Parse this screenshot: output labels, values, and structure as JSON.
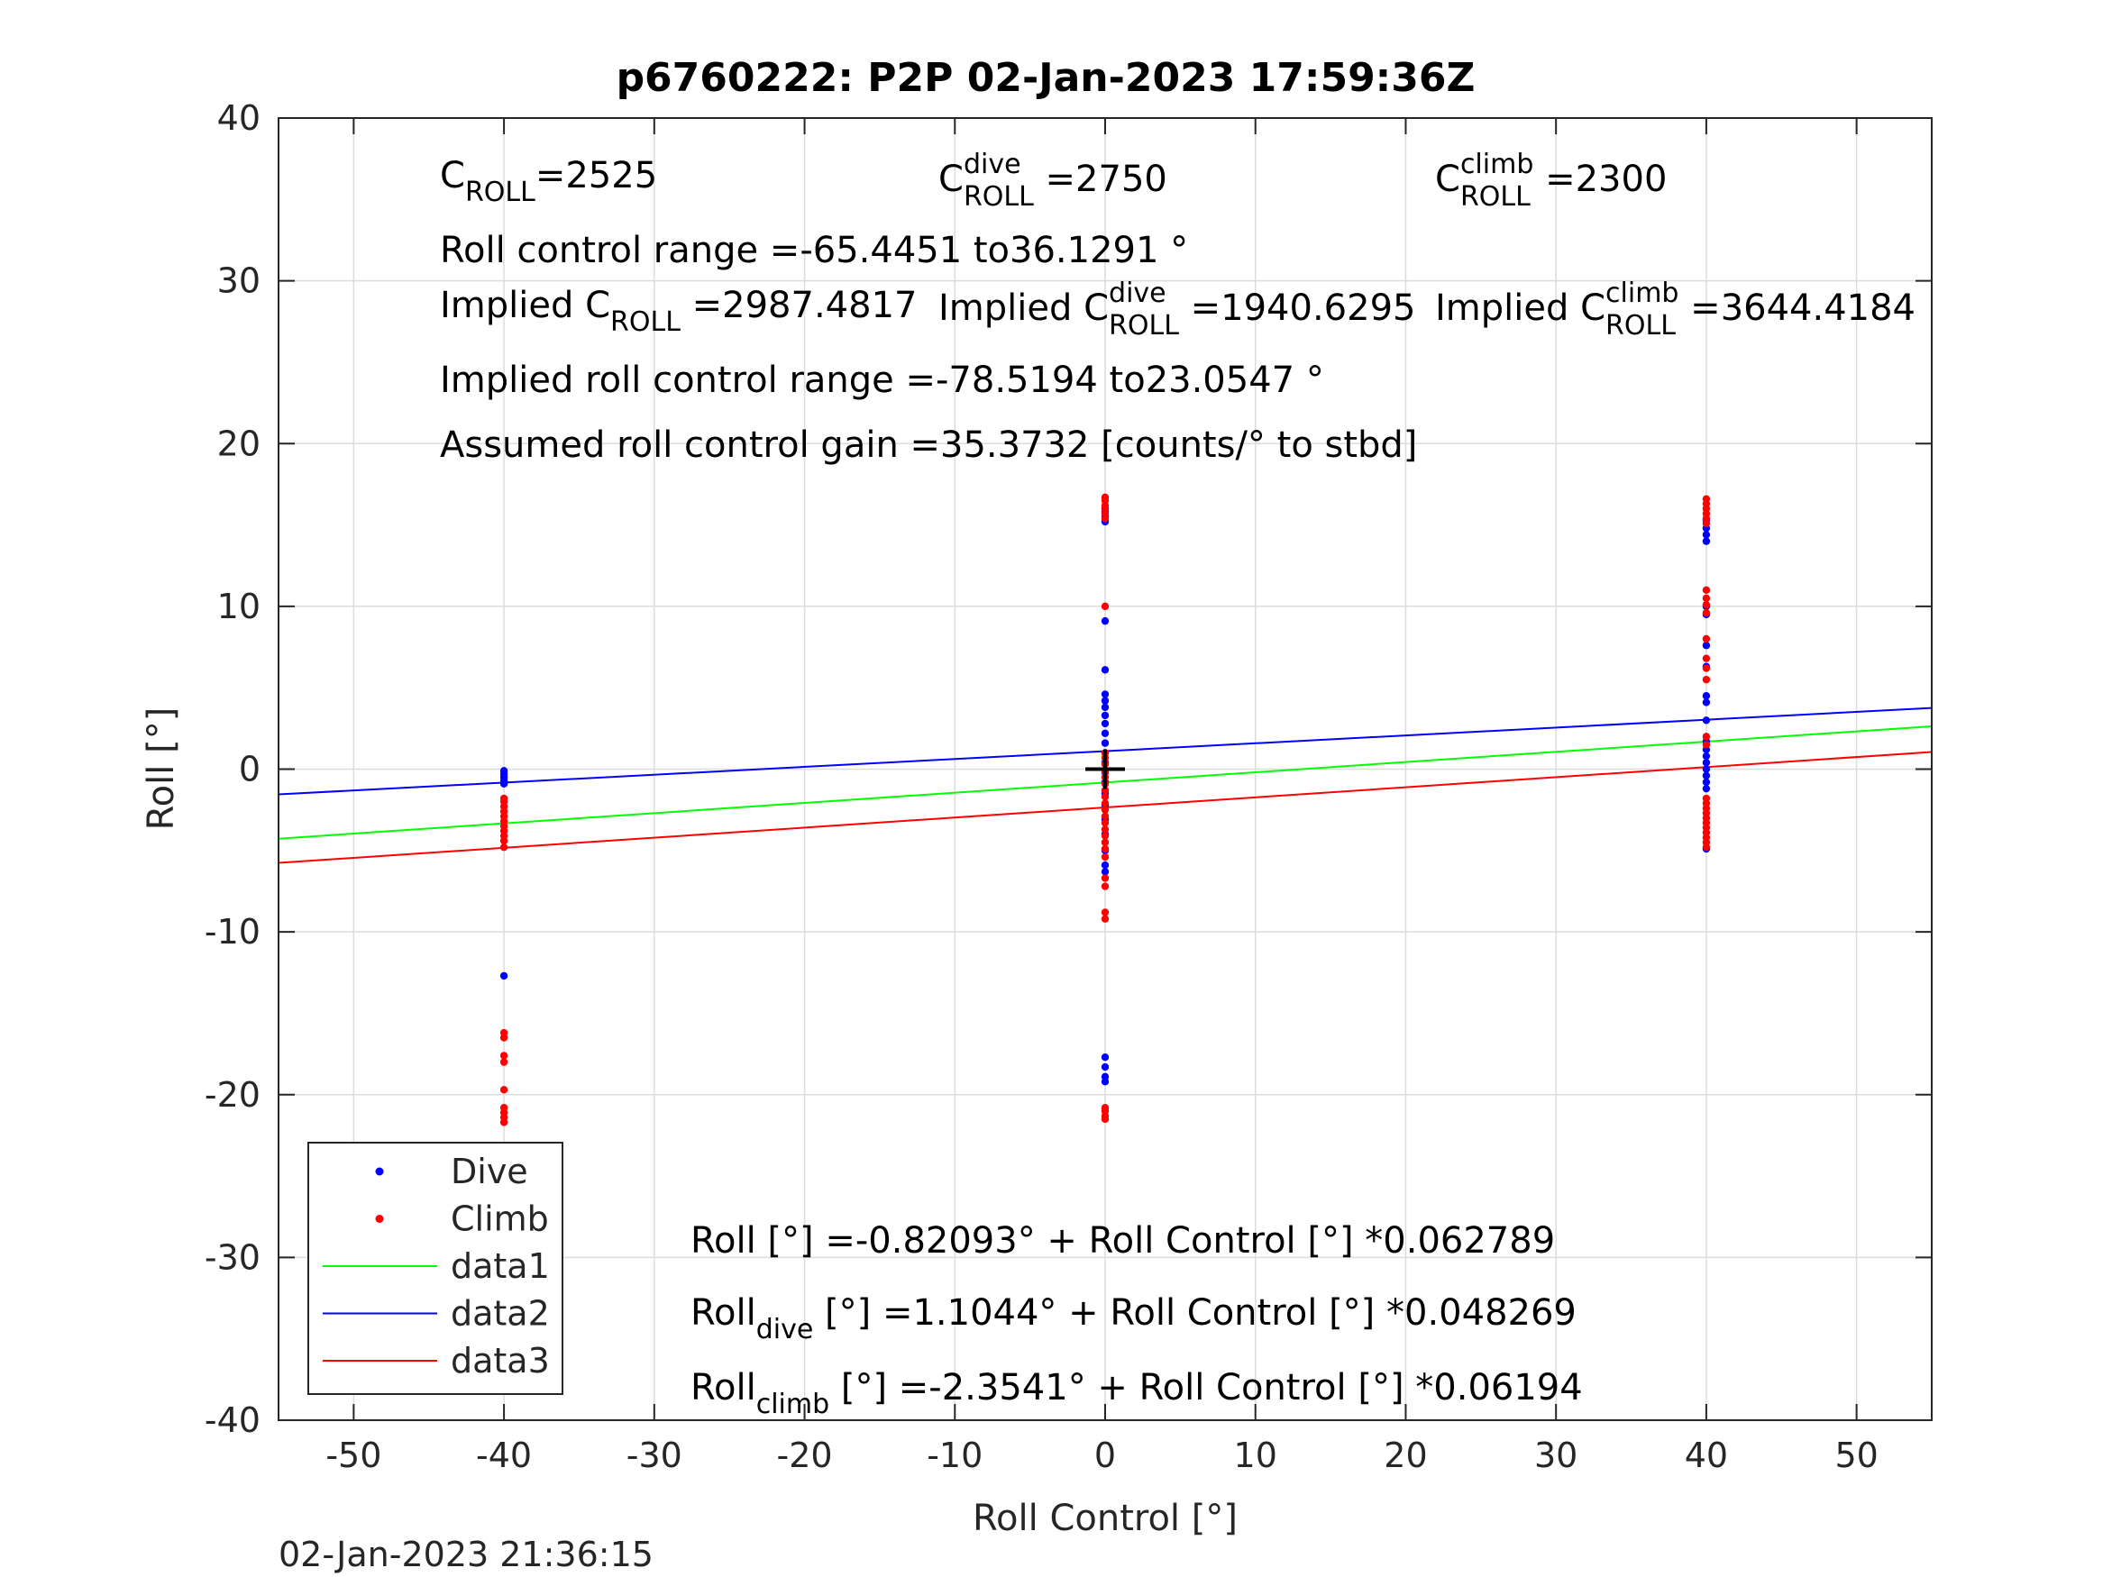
{
  "chart_data": {
    "type": "scatter",
    "title": "p6760222: P2P 02-Jan-2023 17:59:36Z",
    "xlabel": "Roll Control [°]",
    "ylabel": "Roll [°]",
    "xlim": [
      -55,
      55
    ],
    "ylim": [
      -40,
      40
    ],
    "xticks": [
      -50,
      -40,
      -30,
      -20,
      -10,
      0,
      10,
      20,
      30,
      40,
      50
    ],
    "yticks": [
      -40,
      -30,
      -20,
      -10,
      0,
      10,
      20,
      30,
      40
    ],
    "grid": true,
    "legend_position": "bottom-left",
    "timestamp": "02-Jan-2023 21:36:15",
    "colors": {
      "dive": "#0000ff",
      "climb": "#ff0000",
      "data1": "#00ff00",
      "data2": "#0000ff",
      "data3": "#ff0000",
      "marker": "#000000"
    },
    "legend": [
      {
        "label": "Dive",
        "kind": "point",
        "color": "#0000ff"
      },
      {
        "label": "Climb",
        "kind": "point",
        "color": "#ff0000"
      },
      {
        "label": "data1",
        "kind": "line",
        "color": "#00ff00"
      },
      {
        "label": "data2",
        "kind": "line",
        "color": "#0000ff"
      },
      {
        "label": "data3",
        "kind": "line",
        "color": "#ff0000"
      }
    ],
    "series": [
      {
        "name": "Dive",
        "color": "#0000ff",
        "points": [
          [
            -40,
            -0.1
          ],
          [
            -40,
            -0.3
          ],
          [
            -40,
            -0.5
          ],
          [
            -40,
            -0.7
          ],
          [
            -40,
            -0.9
          ],
          [
            -40,
            -12.7
          ],
          [
            0,
            15.2
          ],
          [
            0,
            15.5
          ],
          [
            0,
            15.8
          ],
          [
            0,
            16.0
          ],
          [
            0,
            9.1
          ],
          [
            0,
            6.1
          ],
          [
            0,
            4.6
          ],
          [
            0,
            4.2
          ],
          [
            0,
            3.8
          ],
          [
            0,
            3.3
          ],
          [
            0,
            2.8
          ],
          [
            0,
            2.2
          ],
          [
            0,
            1.6
          ],
          [
            0,
            1.0
          ],
          [
            0,
            0.4
          ],
          [
            0,
            -0.2
          ],
          [
            0,
            -0.8
          ],
          [
            0,
            -1.5
          ],
          [
            0,
            -2.2
          ],
          [
            0,
            -3.1
          ],
          [
            0,
            -4.0
          ],
          [
            0,
            -5.0
          ],
          [
            0,
            -5.9
          ],
          [
            0,
            -6.3
          ],
          [
            0,
            -17.7
          ],
          [
            0,
            -18.3
          ],
          [
            0,
            -18.9
          ],
          [
            0,
            -19.2
          ],
          [
            40,
            14.0
          ],
          [
            40,
            14.4
          ],
          [
            40,
            14.8
          ],
          [
            40,
            15.3
          ],
          [
            40,
            10.0
          ],
          [
            40,
            9.5
          ],
          [
            40,
            7.6
          ],
          [
            40,
            6.3
          ],
          [
            40,
            4.5
          ],
          [
            40,
            4.1
          ],
          [
            40,
            3.0
          ],
          [
            40,
            1.7
          ],
          [
            40,
            1.2
          ],
          [
            40,
            0.8
          ],
          [
            40,
            0.4
          ],
          [
            40,
            0.0
          ],
          [
            40,
            -0.4
          ],
          [
            40,
            -0.8
          ],
          [
            40,
            -1.2
          ],
          [
            40,
            -4.9
          ]
        ]
      },
      {
        "name": "Climb",
        "color": "#ff0000",
        "points": [
          [
            -40,
            -1.8
          ],
          [
            -40,
            -2.0
          ],
          [
            -40,
            -2.3
          ],
          [
            -40,
            -2.6
          ],
          [
            -40,
            -2.9
          ],
          [
            -40,
            -3.2
          ],
          [
            -40,
            -3.5
          ],
          [
            -40,
            -3.8
          ],
          [
            -40,
            -4.1
          ],
          [
            -40,
            -4.4
          ],
          [
            -40,
            -4.8
          ],
          [
            -40,
            -16.2
          ],
          [
            -40,
            -16.5
          ],
          [
            -40,
            -17.6
          ],
          [
            -40,
            -18.0
          ],
          [
            -40,
            -19.7
          ],
          [
            -40,
            -20.8
          ],
          [
            -40,
            -21.1
          ],
          [
            -40,
            -21.4
          ],
          [
            -40,
            -21.7
          ],
          [
            0,
            16.7
          ],
          [
            0,
            16.5
          ],
          [
            0,
            16.2
          ],
          [
            0,
            16.0
          ],
          [
            0,
            15.7
          ],
          [
            0,
            15.4
          ],
          [
            0,
            10.0
          ],
          [
            0,
            1.0
          ],
          [
            0,
            0.7
          ],
          [
            0,
            0.3
          ],
          [
            0,
            -0.1
          ],
          [
            0,
            -0.5
          ],
          [
            0,
            -0.9
          ],
          [
            0,
            -1.3
          ],
          [
            0,
            -1.7
          ],
          [
            0,
            -2.1
          ],
          [
            0,
            -2.5
          ],
          [
            0,
            -2.9
          ],
          [
            0,
            -3.3
          ],
          [
            0,
            -3.7
          ],
          [
            0,
            -4.1
          ],
          [
            0,
            -4.5
          ],
          [
            0,
            -4.9
          ],
          [
            0,
            -5.4
          ],
          [
            0,
            -6.7
          ],
          [
            0,
            -7.2
          ],
          [
            0,
            -8.8
          ],
          [
            0,
            -9.2
          ],
          [
            0,
            -20.8
          ],
          [
            0,
            -21.0
          ],
          [
            0,
            -21.3
          ],
          [
            0,
            -21.5
          ],
          [
            40,
            16.6
          ],
          [
            40,
            16.3
          ],
          [
            40,
            16.0
          ],
          [
            40,
            15.7
          ],
          [
            40,
            15.4
          ],
          [
            40,
            15.1
          ],
          [
            40,
            11.0
          ],
          [
            40,
            10.5
          ],
          [
            40,
            10.1
          ],
          [
            40,
            9.6
          ],
          [
            40,
            8.0
          ],
          [
            40,
            6.8
          ],
          [
            40,
            6.2
          ],
          [
            40,
            5.5
          ],
          [
            40,
            2.0
          ],
          [
            40,
            1.5
          ],
          [
            40,
            -1.8
          ],
          [
            40,
            -2.1
          ],
          [
            40,
            -2.4
          ],
          [
            40,
            -2.7
          ],
          [
            40,
            -3.0
          ],
          [
            40,
            -3.3
          ],
          [
            40,
            -3.6
          ],
          [
            40,
            -3.9
          ],
          [
            40,
            -4.2
          ],
          [
            40,
            -4.5
          ],
          [
            40,
            -4.8
          ]
        ]
      }
    ],
    "lines": [
      {
        "name": "data1",
        "color": "#00ff00",
        "intercept": -0.82093,
        "slope": 0.062789
      },
      {
        "name": "data2",
        "color": "#0000ff",
        "intercept": 1.1044,
        "slope": 0.048269
      },
      {
        "name": "data3",
        "color": "#ff0000",
        "intercept": -2.3541,
        "slope": 0.06194
      }
    ],
    "center_marker": {
      "x": 0,
      "y": 0
    },
    "annotations": {
      "c_roll": {
        "base": "C",
        "sub": "ROLL",
        "value": "=2525"
      },
      "c_roll_dive": {
        "base": "C",
        "sup": "dive",
        "sub": "ROLL",
        "value": "=2750"
      },
      "c_roll_climb": {
        "base": "C",
        "sup": "climb",
        "sub": "ROLL",
        "value": "=2300"
      },
      "roll_control_range": "Roll control range =-65.4451 to36.1291 °",
      "implied_c_roll": {
        "prefix": "Implied C",
        "sub": "ROLL",
        "value": "=2987.4817"
      },
      "implied_c_roll_dive": {
        "prefix": "Implied C",
        "sup": "dive",
        "sub": "ROLL",
        "value": "=1940.6295"
      },
      "implied_c_roll_climb": {
        "prefix": "Implied C",
        "sup": "climb",
        "sub": "ROLL",
        "value": "=3644.4184"
      },
      "implied_range": "Implied roll control range =-78.5194 to23.0547 °",
      "gain": "Assumed roll control gain =35.3732 [counts/° to stbd]",
      "fit_all": {
        "base": "Roll",
        "rest": " [°] =-0.82093° + Roll Control [°] *0.062789"
      },
      "fit_dive": {
        "base": "Roll",
        "sub": "dive",
        "rest": " [°] =1.1044° + Roll Control [°] *0.048269"
      },
      "fit_climb": {
        "base": "Roll",
        "sub": "climb",
        "rest": " [°] =-2.3541° + Roll Control [°] *0.06194"
      }
    }
  }
}
